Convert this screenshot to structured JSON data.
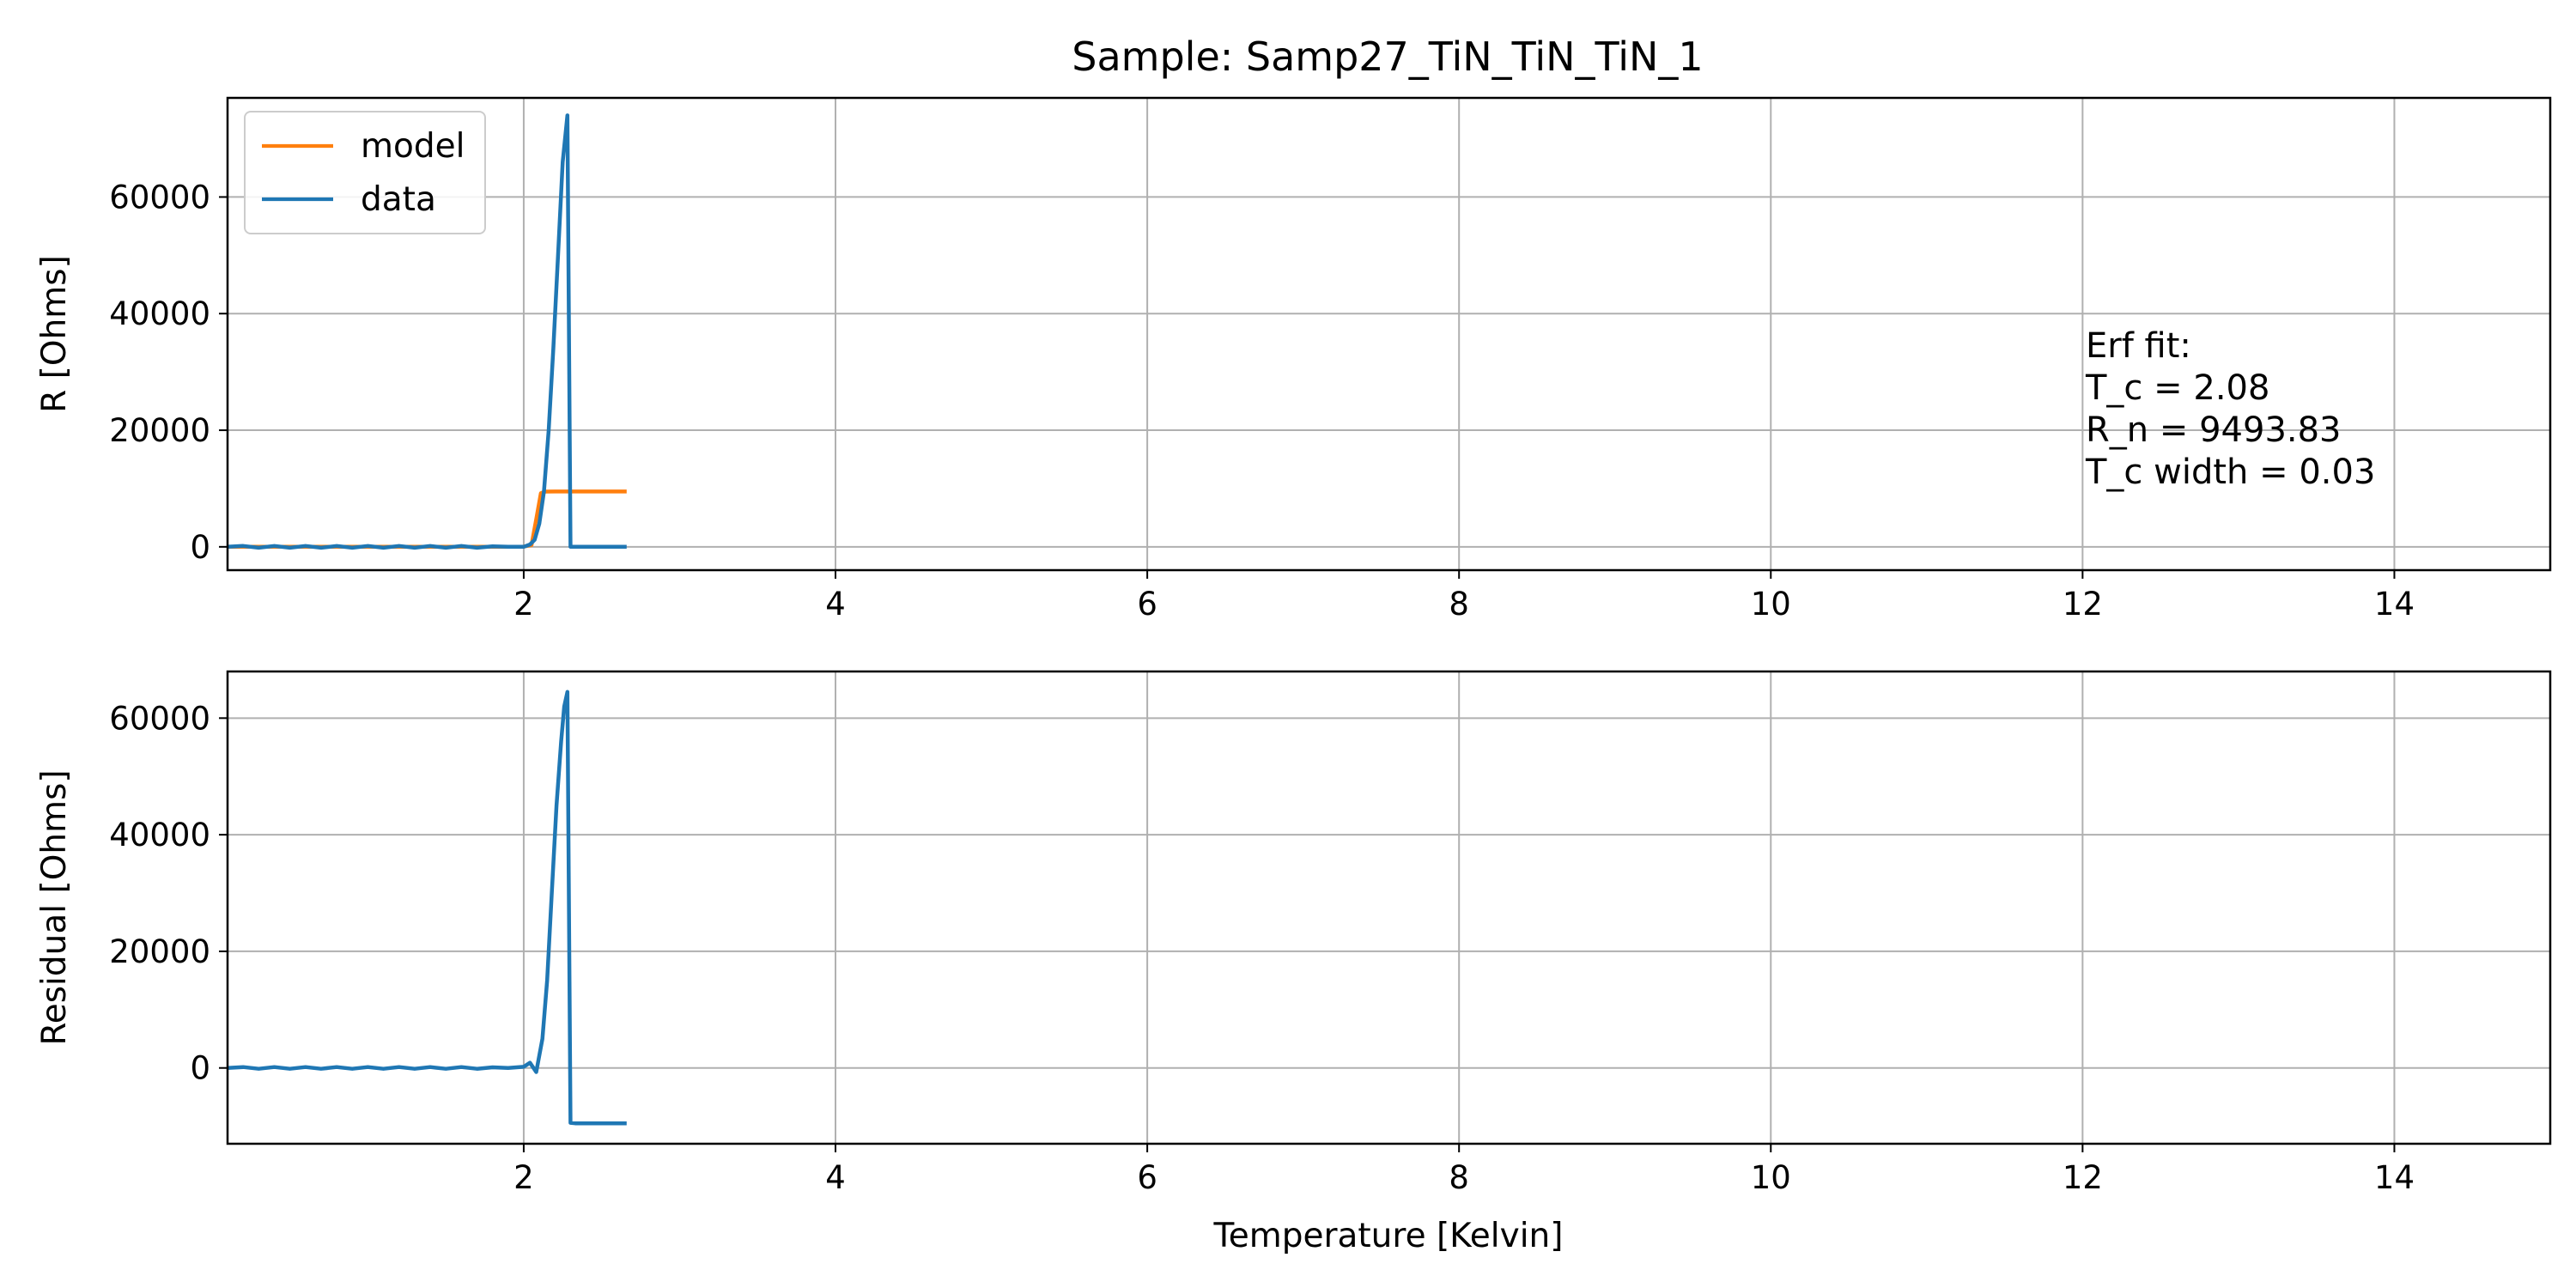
{
  "chart_data": [
    {
      "type": "line",
      "title": "Sample: Samp27_TiN_TiN_TiN_1",
      "xlabel": "",
      "ylabel": "R [Ohms]",
      "xlim": [
        0.1,
        15.0
      ],
      "ylim": [
        -4000,
        77000
      ],
      "xticks": [
        2,
        4,
        6,
        8,
        10,
        12,
        14
      ],
      "xtick_labels": [
        "2",
        "4",
        "6",
        "8",
        "10",
        "12",
        "14"
      ],
      "yticks": [
        0,
        20000,
        40000,
        60000
      ],
      "ytick_labels": [
        "0",
        "20000",
        "40000",
        "60000"
      ],
      "grid": true,
      "legend": {
        "placement": "upper-left",
        "entries": [
          {
            "name": "model",
            "color": "#ff7f0e"
          },
          {
            "name": "data",
            "color": "#1f77b4"
          }
        ]
      },
      "annotation": {
        "lines": [
          "Erf fit:",
          "T_c = 2.08",
          "R_n = 9493.83",
          "T_c width = 0.03"
        ],
        "x": 12.02,
        "y": 32500
      },
      "series": [
        {
          "name": "model",
          "color": "#ff7f0e",
          "x": [
            0.1,
            1.9,
            2.0,
            2.05,
            2.08,
            2.11,
            2.14,
            2.2,
            2.4,
            2.66
          ],
          "y": [
            0,
            0,
            30,
            300,
            4746,
            9200,
            9480,
            9494,
            9494,
            9494
          ]
        },
        {
          "name": "data",
          "color": "#1f77b4",
          "x": [
            0.1,
            0.2,
            0.3,
            0.4,
            0.5,
            0.6,
            0.7,
            0.8,
            0.9,
            1.0,
            1.1,
            1.2,
            1.3,
            1.4,
            1.5,
            1.6,
            1.7,
            1.8,
            1.9,
            2.0,
            2.04,
            2.07,
            2.1,
            2.13,
            2.16,
            2.19,
            2.22,
            2.25,
            2.28,
            2.3,
            2.32,
            2.4,
            2.5,
            2.66
          ],
          "y": [
            0,
            150,
            -150,
            150,
            -150,
            150,
            -150,
            150,
            -150,
            150,
            -150,
            150,
            -150,
            150,
            -150,
            150,
            -150,
            100,
            0,
            0,
            400,
            1200,
            4000,
            9500,
            20000,
            34000,
            50000,
            66000,
            74000,
            0,
            0,
            0,
            0,
            0
          ]
        }
      ]
    },
    {
      "type": "line",
      "title": "",
      "xlabel": "Temperature [Kelvin]",
      "ylabel": "Residual [Ohms]",
      "xlim": [
        0.1,
        15.0
      ],
      "ylim": [
        -13000,
        68000
      ],
      "xticks": [
        2,
        4,
        6,
        8,
        10,
        12,
        14
      ],
      "xtick_labels": [
        "2",
        "4",
        "6",
        "8",
        "10",
        "12",
        "14"
      ],
      "yticks": [
        0,
        20000,
        40000,
        60000
      ],
      "ytick_labels": [
        "0",
        "20000",
        "40000",
        "60000"
      ],
      "grid": true,
      "series": [
        {
          "color": "#1f77b4",
          "x": [
            0.1,
            0.2,
            0.3,
            0.4,
            0.5,
            0.6,
            0.7,
            0.8,
            0.9,
            1.0,
            1.1,
            1.2,
            1.3,
            1.4,
            1.5,
            1.6,
            1.7,
            1.8,
            1.9,
            2.0,
            2.04,
            2.08,
            2.12,
            2.15,
            2.18,
            2.21,
            2.24,
            2.26,
            2.28,
            2.3,
            2.33,
            2.4,
            2.5,
            2.66
          ],
          "y": [
            0,
            150,
            -150,
            150,
            -150,
            150,
            -150,
            150,
            -150,
            150,
            -150,
            150,
            -150,
            150,
            -150,
            150,
            -150,
            100,
            0,
            200,
            900,
            -700,
            5000,
            15000,
            30000,
            45000,
            56000,
            62000,
            64500,
            -9400,
            -9494,
            -9494,
            -9494,
            -9494
          ]
        }
      ]
    }
  ]
}
